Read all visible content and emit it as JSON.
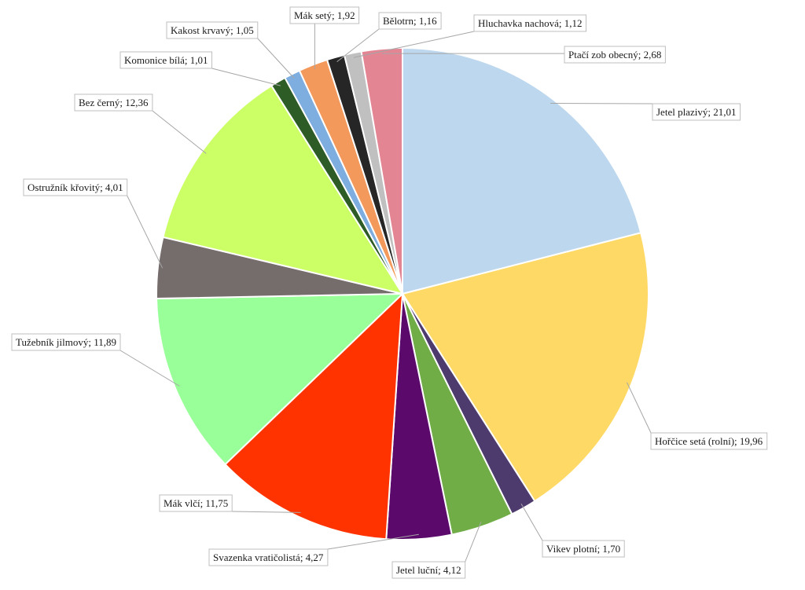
{
  "chart_data": {
    "type": "pie",
    "title": "",
    "slices": [
      {
        "label": "Jetel plazivý; 21,01",
        "value": 21.01,
        "color": "#bdd7ee"
      },
      {
        "label": "Hořčice setá (rolní); 19,96",
        "value": 19.96,
        "color": "#ffd966"
      },
      {
        "label": "Vikev plotní; 1,70",
        "value": 1.7,
        "color": "#4e3b6e"
      },
      {
        "label": "Jetel luční; 4,12",
        "value": 4.12,
        "color": "#70ad47"
      },
      {
        "label": "Svazenka vratičolistá; 4,27",
        "value": 4.27,
        "color": "#5b0a6b"
      },
      {
        "label": "Mák vlčí; 11,75",
        "value": 11.75,
        "color": "#ff3300"
      },
      {
        "label": "Tužebník jilmový; 11,89",
        "value": 11.89,
        "color": "#99ff99"
      },
      {
        "label": "Ostružník křovitý; 4,01",
        "value": 4.01,
        "color": "#756c6c"
      },
      {
        "label": "Bez černý; 12,36",
        "value": 12.36,
        "color": "#ccff66"
      },
      {
        "label": "Komonice bílá; 1,01",
        "value": 1.01,
        "color": "#2e5c26"
      },
      {
        "label": "Kakost krvavý; 1,05",
        "value": 1.05,
        "color": "#7eaee0"
      },
      {
        "label": "Mák setý; 1,92",
        "value": 1.92,
        "color": "#f4995c"
      },
      {
        "label": "Bělotrn; 1,16",
        "value": 1.16,
        "color": "#262626"
      },
      {
        "label": "Hluchavka nachová; 1,12",
        "value": 1.12,
        "color": "#c0c0c0"
      },
      {
        "label": "Ptačí zob obecný; 2,68",
        "value": 2.68,
        "color": "#e38593"
      }
    ],
    "legend": "none"
  }
}
